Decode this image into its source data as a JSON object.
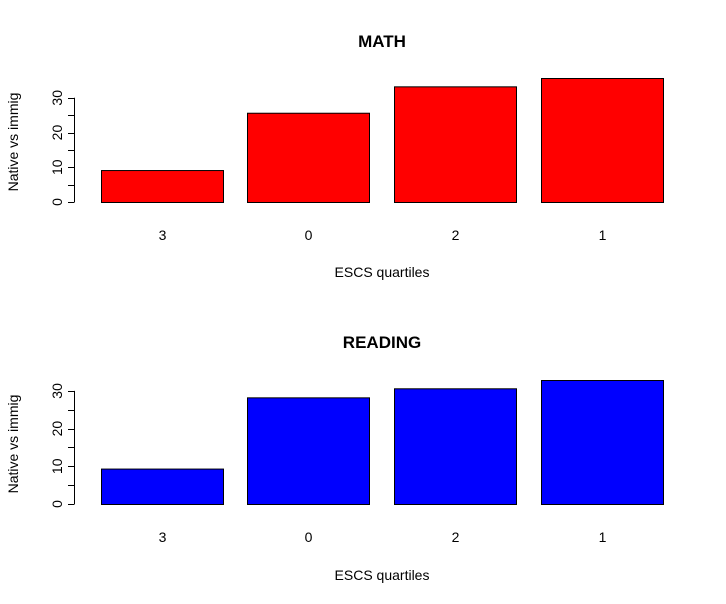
{
  "chart_data": [
    {
      "type": "bar",
      "title": "MATH",
      "xlabel": "ESCS quartiles",
      "ylabel": "Native vs immig",
      "categories": [
        "3",
        "0",
        "2",
        "1"
      ],
      "values": [
        9.2,
        25.7,
        33.3,
        35.7
      ],
      "ylim": [
        0,
        35.7
      ],
      "yticks": [
        0,
        10,
        20,
        30
      ],
      "bar_color": "#ff0000",
      "grid": false
    },
    {
      "type": "bar",
      "title": "READING",
      "xlabel": "ESCS quartiles",
      "ylabel": "Native vs  immig",
      "categories": [
        "3",
        "0",
        "2",
        "1"
      ],
      "values": [
        9.4,
        28.3,
        30.7,
        32.9
      ],
      "ylim": [
        0,
        32.9
      ],
      "yticks": [
        0,
        10,
        20,
        30
      ],
      "bar_color": "#0000ff",
      "grid": false
    }
  ]
}
